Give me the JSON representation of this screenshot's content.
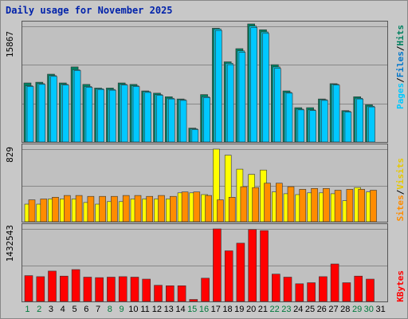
{
  "title": "Daily usage for November 2025",
  "colors": {
    "pages": "#00c8ff",
    "files": "#00c8e0",
    "hits": "#008060",
    "visits": "#ffff00",
    "sites": "#ff8c00",
    "kbytes": "#ff0000",
    "weekend": "#007a3d",
    "weekday": "#000000"
  },
  "panels": {
    "top": {
      "ymax_label": "15867",
      "legend": [
        "Pages",
        "Files",
        "Hits"
      ],
      "sep": "/"
    },
    "middle": {
      "ymax_label": "829",
      "legend": [
        "Sites",
        "Visits"
      ],
      "sep": "/"
    },
    "bottom": {
      "ymax_label": "1432543",
      "legend": [
        "KBytes"
      ]
    }
  },
  "chart_data": [
    {
      "type": "bar",
      "title": "Daily usage for November 2025",
      "categories": [
        "1",
        "2",
        "3",
        "4",
        "5",
        "6",
        "7",
        "8",
        "9",
        "10",
        "11",
        "12",
        "13",
        "14",
        "15",
        "16",
        "17",
        "18",
        "19",
        "20",
        "21",
        "22",
        "23",
        "24",
        "25",
        "26",
        "27",
        "28",
        "29",
        "30",
        "31"
      ],
      "ylim": [
        0,
        15867
      ],
      "series": [
        {
          "name": "Hits",
          "values": [
            8100,
            8200,
            9300,
            8100,
            10300,
            7900,
            7400,
            7400,
            8100,
            7900,
            7000,
            6700,
            6200,
            5900,
            1900,
            6500,
            15600,
            11000,
            12800,
            16200,
            15400,
            10600,
            7000,
            4700,
            4700,
            5900,
            8000,
            4300,
            6200,
            5100,
            0
          ]
        },
        {
          "name": "Files",
          "values": [
            7700,
            8000,
            9100,
            7900,
            9900,
            7600,
            7300,
            7200,
            7900,
            7700,
            6900,
            6500,
            6000,
            5800,
            1800,
            6200,
            15500,
            10800,
            12500,
            15900,
            15100,
            10300,
            6800,
            4500,
            4400,
            5800,
            7900,
            4200,
            6000,
            4900,
            0
          ]
        },
        {
          "name": "Pages",
          "values": [
            7600,
            7900,
            9000,
            7800,
            9800,
            7500,
            7200,
            7100,
            7800,
            7600,
            6800,
            6400,
            5900,
            5700,
            1700,
            6100,
            15300,
            10600,
            12300,
            15700,
            14900,
            10100,
            6700,
            4400,
            4300,
            5700,
            7800,
            4100,
            5900,
            4800,
            0
          ]
        }
      ]
    },
    {
      "type": "bar",
      "categories": [
        "1",
        "2",
        "3",
        "4",
        "5",
        "6",
        "7",
        "8",
        "9",
        "10",
        "11",
        "12",
        "13",
        "14",
        "15",
        "16",
        "17",
        "18",
        "19",
        "20",
        "21",
        "22",
        "23",
        "24",
        "25",
        "26",
        "27",
        "28",
        "29",
        "30",
        "31"
      ],
      "ylim": [
        0,
        829
      ],
      "series": [
        {
          "name": "Visits",
          "values": [
            200,
            200,
            260,
            260,
            260,
            220,
            200,
            230,
            230,
            260,
            260,
            260,
            260,
            330,
            330,
            310,
            829,
            760,
            600,
            540,
            590,
            340,
            320,
            310,
            330,
            330,
            320,
            240,
            390,
            340,
            0
          ]
        },
        {
          "name": "Sites",
          "values": [
            250,
            260,
            280,
            300,
            300,
            290,
            290,
            290,
            300,
            300,
            290,
            300,
            290,
            340,
            340,
            300,
            250,
            280,
            400,
            390,
            440,
            440,
            400,
            370,
            380,
            380,
            360,
            370,
            370,
            360,
            0
          ]
        }
      ]
    },
    {
      "type": "bar",
      "categories": [
        "1",
        "2",
        "3",
        "4",
        "5",
        "6",
        "7",
        "8",
        "9",
        "10",
        "11",
        "12",
        "13",
        "14",
        "15",
        "16",
        "17",
        "18",
        "19",
        "20",
        "21",
        "22",
        "23",
        "24",
        "25",
        "26",
        "27",
        "28",
        "29",
        "30",
        "31"
      ],
      "ylim": [
        0,
        1432543
      ],
      "series": [
        {
          "name": "KBytes",
          "values": [
            510000,
            490000,
            600000,
            500000,
            630000,
            480000,
            470000,
            480000,
            490000,
            480000,
            440000,
            320000,
            310000,
            310000,
            40000,
            460000,
            1432543,
            1000000,
            1150000,
            1420000,
            1400000,
            540000,
            480000,
            350000,
            370000,
            490000,
            740000,
            370000,
            500000,
            440000,
            0
          ]
        }
      ]
    }
  ]
}
